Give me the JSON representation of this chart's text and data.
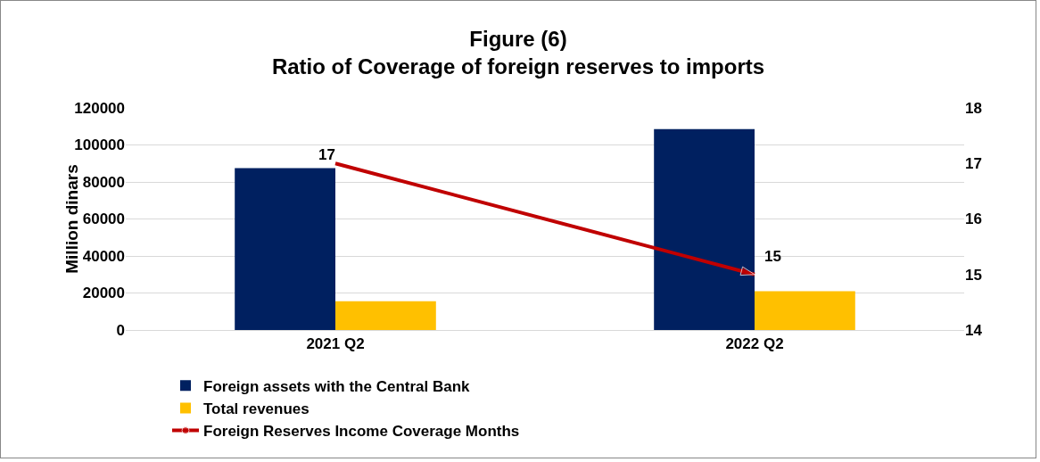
{
  "chart_data": {
    "type": "bar",
    "title": "Figure (6)",
    "subtitle": "Ratio of Coverage of foreign reserves to imports",
    "ylabel": "Million dinars",
    "categories": [
      "2021 Q2",
      "2022 Q2"
    ],
    "series": [
      {
        "name": "Foreign assets with the Central Bank",
        "color": "#002060",
        "values": [
          87500,
          108500
        ]
      },
      {
        "name": "Total revenues",
        "color": "#ffc000",
        "values": [
          15500,
          21000
        ]
      },
      {
        "name": "Foreign Reserves Income Coverage Months",
        "type": "line",
        "axis": "y2",
        "color": "#c00000",
        "values": [
          17,
          15
        ],
        "value_labels": [
          "17",
          "15"
        ]
      }
    ],
    "ylim": [
      0,
      120000
    ],
    "yticks": [
      0,
      20000,
      40000,
      60000,
      80000,
      100000,
      120000
    ],
    "y2lim": [
      14,
      18
    ],
    "y2ticks": [
      14,
      15,
      16,
      17,
      18
    ],
    "grid": "y",
    "legend": "bottom"
  }
}
